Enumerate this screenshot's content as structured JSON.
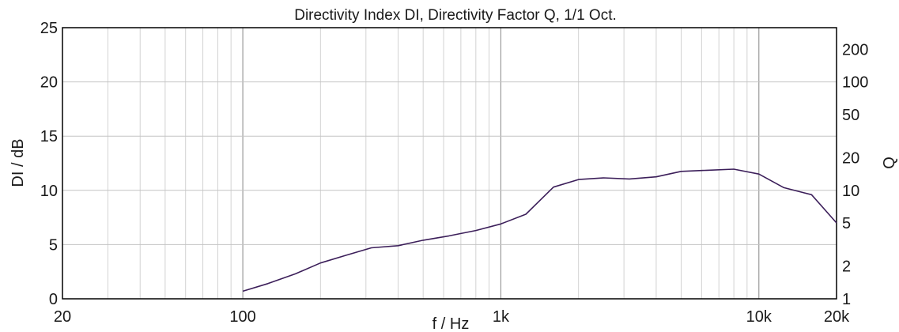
{
  "chart_data": {
    "type": "line",
    "title": "Directivity Index DI, Directivity Factor Q, 1/1 Oct.",
    "xlabel": "f / Hz",
    "ylabel": "DI / dB",
    "y2label": "Q",
    "xscale": "log",
    "xlim": [
      20,
      20000
    ],
    "ylim": [
      0,
      25
    ],
    "grid": true,
    "x_tick_labels": [
      "20",
      "100",
      "1k",
      "10k",
      "20k"
    ],
    "x_tick_values": [
      20,
      100,
      1000,
      10000,
      20000
    ],
    "y_tick_labels": [
      "0",
      "5",
      "10",
      "15",
      "20",
      "25"
    ],
    "y_tick_values": [
      0,
      5,
      10,
      15,
      20,
      25
    ],
    "y2_tick_labels": [
      "1",
      "2",
      "5",
      "10",
      "20",
      "50",
      "100",
      "200"
    ],
    "y2_tick_values": [
      1,
      2,
      5,
      10,
      20,
      50,
      100,
      200
    ],
    "series": [
      {
        "color": "#3c1f5a",
        "x": [
          100,
          125,
          160,
          200,
          250,
          315,
          400,
          500,
          630,
          800,
          1000,
          1250,
          1600,
          2000,
          2500,
          3150,
          4000,
          5000,
          6300,
          8000,
          10000,
          12500,
          16000,
          20000
        ],
        "y": [
          0.7,
          1.4,
          2.3,
          3.3,
          4.0,
          4.7,
          4.9,
          5.4,
          5.8,
          6.3,
          6.9,
          7.8,
          10.3,
          11.0,
          11.15,
          11.05,
          11.25,
          11.75,
          11.85,
          11.95,
          11.5,
          10.25,
          9.6,
          7.0
        ]
      }
    ]
  }
}
